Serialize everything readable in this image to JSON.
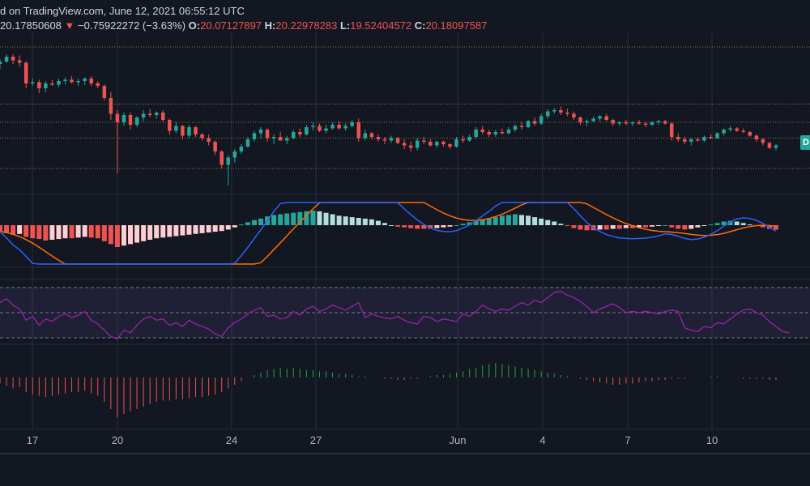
{
  "header": {
    "source_line": "d on TradingView.com, June 12, 2021 06:55:12 UTC",
    "price": "20.17850608",
    "change_arrow": "▼",
    "change": "−0.75922272 (−3.63%)",
    "o_label": "O:",
    "o_value": "20.07127897",
    "h_label": "H:",
    "h_value": "20.22978283",
    "l_label": "L:",
    "l_value": "19.52404572",
    "c_label": "C:",
    "c_value": "20.18097587"
  },
  "price_tag": "D",
  "colors": {
    "background": "#131722",
    "up": "#26a69a",
    "down": "#ef5350",
    "macd": "#2962ff",
    "signal": "#ff6d00",
    "rsi": "#9c27b0",
    "hist_up": "#26a69a",
    "hist_down": "#ef5350",
    "grid": "#2a2e39"
  },
  "chart_data": {
    "type": "candlestick",
    "x_ticks": [
      "17",
      "20",
      "24",
      "27",
      "Jun",
      "4",
      "7",
      "10"
    ],
    "price_hlines": [
      19.0,
      21.5,
      22.8,
      24.3,
      29.0
    ],
    "candles": [
      [
        27.6,
        28.0,
        27.2,
        27.8
      ],
      [
        27.8,
        28.4,
        27.7,
        28.2
      ],
      [
        28.2,
        28.4,
        27.6,
        27.9
      ],
      [
        27.9,
        28.3,
        27.4,
        27.7
      ],
      [
        27.7,
        27.8,
        25.6,
        26.0
      ],
      [
        26.0,
        26.4,
        25.8,
        26.1
      ],
      [
        26.1,
        26.3,
        25.2,
        25.6
      ],
      [
        25.6,
        26.2,
        25.3,
        26.0
      ],
      [
        26.0,
        26.3,
        25.8,
        25.9
      ],
      [
        25.9,
        26.4,
        25.7,
        26.2
      ],
      [
        26.2,
        26.5,
        25.9,
        26.3
      ],
      [
        26.3,
        26.6,
        26.0,
        26.1
      ],
      [
        26.1,
        26.4,
        25.8,
        26.2
      ],
      [
        26.2,
        26.5,
        25.9,
        26.4
      ],
      [
        26.4,
        26.6,
        25.8,
        26.0
      ],
      [
        26.0,
        26.2,
        25.6,
        25.8
      ],
      [
        25.8,
        25.9,
        24.6,
        24.8
      ],
      [
        24.8,
        25.3,
        23.0,
        23.5
      ],
      [
        23.5,
        23.8,
        18.6,
        22.8
      ],
      [
        22.8,
        23.6,
        22.5,
        23.4
      ],
      [
        23.4,
        23.6,
        22.2,
        22.6
      ],
      [
        22.6,
        23.3,
        22.4,
        23.2
      ],
      [
        23.2,
        23.8,
        22.9,
        23.5
      ],
      [
        23.5,
        23.9,
        23.2,
        23.4
      ],
      [
        23.4,
        23.7,
        23.1,
        23.6
      ],
      [
        23.6,
        23.8,
        22.8,
        23.0
      ],
      [
        23.0,
        23.1,
        21.8,
        22.1
      ],
      [
        22.1,
        22.8,
        21.9,
        22.5
      ],
      [
        22.5,
        22.6,
        21.4,
        21.7
      ],
      [
        21.7,
        22.6,
        21.5,
        22.4
      ],
      [
        22.4,
        22.5,
        21.6,
        21.8
      ],
      [
        21.8,
        21.9,
        21.3,
        21.5
      ],
      [
        21.5,
        21.8,
        20.9,
        21.2
      ],
      [
        21.2,
        21.3,
        20.1,
        20.4
      ],
      [
        20.4,
        20.5,
        19.0,
        19.3
      ],
      [
        19.3,
        20.1,
        17.6,
        19.9
      ],
      [
        19.9,
        20.6,
        19.5,
        20.4
      ],
      [
        20.4,
        21.0,
        20.2,
        20.8
      ],
      [
        20.8,
        21.6,
        20.7,
        21.4
      ],
      [
        21.4,
        22.1,
        21.2,
        21.9
      ],
      [
        21.9,
        22.4,
        21.5,
        22.2
      ],
      [
        22.2,
        22.3,
        21.2,
        21.5
      ],
      [
        21.5,
        21.8,
        21.0,
        21.6
      ],
      [
        21.6,
        22.0,
        21.3,
        21.3
      ],
      [
        21.3,
        21.7,
        21.0,
        21.5
      ],
      [
        21.5,
        22.2,
        21.4,
        22.0
      ],
      [
        22.0,
        22.3,
        21.6,
        21.8
      ],
      [
        21.8,
        22.6,
        21.7,
        22.4
      ],
      [
        22.4,
        22.8,
        22.1,
        22.5
      ],
      [
        22.5,
        22.7,
        22.0,
        22.1
      ],
      [
        22.1,
        22.6,
        21.9,
        22.3
      ],
      [
        22.3,
        22.8,
        22.2,
        22.6
      ],
      [
        22.6,
        22.9,
        22.2,
        22.3
      ],
      [
        22.3,
        22.7,
        22.1,
        22.5
      ],
      [
        22.5,
        23.0,
        22.4,
        22.8
      ],
      [
        22.8,
        23.1,
        21.2,
        21.5
      ],
      [
        21.5,
        22.2,
        21.3,
        21.9
      ],
      [
        21.9,
        22.0,
        21.4,
        21.6
      ],
      [
        21.6,
        21.8,
        21.2,
        21.4
      ],
      [
        21.4,
        21.6,
        21.0,
        21.3
      ],
      [
        21.3,
        21.7,
        21.1,
        21.5
      ],
      [
        21.5,
        21.6,
        21.0,
        21.1
      ],
      [
        21.1,
        21.4,
        20.6,
        20.9
      ],
      [
        20.9,
        21.2,
        20.4,
        20.7
      ],
      [
        20.7,
        21.5,
        20.5,
        21.3
      ],
      [
        21.3,
        21.6,
        21.0,
        21.2
      ],
      [
        21.2,
        21.4,
        20.8,
        20.9
      ],
      [
        20.9,
        21.3,
        20.7,
        21.2
      ],
      [
        21.2,
        21.3,
        20.8,
        21.0
      ],
      [
        21.0,
        21.1,
        20.6,
        20.8
      ],
      [
        20.8,
        21.6,
        20.7,
        21.4
      ],
      [
        21.4,
        21.7,
        21.1,
        21.3
      ],
      [
        21.3,
        21.8,
        21.2,
        21.6
      ],
      [
        21.6,
        22.4,
        21.5,
        22.2
      ],
      [
        22.2,
        22.5,
        21.8,
        22.0
      ],
      [
        22.0,
        22.2,
        21.6,
        21.8
      ],
      [
        21.8,
        22.2,
        21.6,
        22.0
      ],
      [
        22.0,
        22.3,
        21.8,
        21.9
      ],
      [
        21.9,
        22.4,
        21.8,
        22.2
      ],
      [
        22.2,
        22.6,
        22.0,
        22.5
      ],
      [
        22.5,
        22.8,
        22.2,
        22.4
      ],
      [
        22.4,
        23.0,
        22.3,
        22.9
      ],
      [
        22.9,
        23.2,
        22.5,
        22.7
      ],
      [
        22.7,
        23.5,
        22.6,
        23.3
      ],
      [
        23.3,
        23.9,
        23.1,
        23.7
      ],
      [
        23.7,
        24.0,
        23.5,
        23.8
      ],
      [
        23.8,
        24.1,
        23.4,
        23.6
      ],
      [
        23.6,
        23.9,
        23.3,
        23.5
      ],
      [
        23.5,
        23.7,
        23.0,
        23.2
      ],
      [
        23.2,
        23.3,
        22.6,
        22.8
      ],
      [
        22.8,
        23.0,
        22.5,
        22.9
      ],
      [
        22.9,
        23.3,
        22.8,
        23.1
      ],
      [
        23.1,
        23.4,
        22.9,
        23.3
      ],
      [
        23.3,
        23.5,
        22.9,
        23.0
      ],
      [
        23.0,
        23.1,
        22.5,
        22.7
      ],
      [
        22.7,
        22.9,
        22.5,
        22.8
      ],
      [
        22.8,
        23.0,
        22.6,
        22.7
      ],
      [
        22.7,
        22.9,
        22.5,
        22.8
      ],
      [
        22.8,
        23.0,
        22.6,
        22.7
      ],
      [
        22.7,
        22.8,
        22.4,
        22.6
      ],
      [
        22.6,
        22.9,
        22.5,
        22.8
      ],
      [
        22.8,
        23.0,
        22.6,
        22.9
      ],
      [
        22.9,
        23.0,
        22.6,
        22.7
      ],
      [
        22.7,
        22.8,
        21.3,
        21.6
      ],
      [
        21.6,
        21.9,
        21.2,
        21.4
      ],
      [
        21.4,
        21.6,
        21.0,
        21.2
      ],
      [
        21.2,
        21.5,
        20.9,
        21.4
      ],
      [
        21.4,
        21.6,
        21.2,
        21.3
      ],
      [
        21.3,
        21.7,
        21.2,
        21.6
      ],
      [
        21.6,
        21.8,
        21.4,
        21.5
      ],
      [
        21.5,
        22.0,
        21.4,
        21.9
      ],
      [
        21.9,
        22.3,
        21.7,
        22.2
      ],
      [
        22.2,
        22.5,
        22.0,
        22.3
      ],
      [
        22.3,
        22.4,
        22.0,
        22.1
      ],
      [
        22.1,
        22.3,
        21.9,
        22.0
      ],
      [
        22.0,
        22.1,
        21.6,
        21.7
      ],
      [
        21.7,
        21.8,
        21.2,
        21.4
      ],
      [
        21.4,
        21.5,
        20.9,
        21.1
      ],
      [
        21.1,
        21.2,
        20.6,
        20.7
      ],
      [
        20.7,
        21.0,
        20.5,
        20.9
      ]
    ],
    "macd_hist": [
      -0.9,
      -1.1,
      -1.3,
      -1.2,
      -1.6,
      -1.8,
      -1.9,
      -2.1,
      -2.0,
      -1.9,
      -1.8,
      -1.8,
      -1.7,
      -1.6,
      -1.7,
      -1.8,
      -2.2,
      -2.6,
      -3.0,
      -2.8,
      -2.6,
      -2.4,
      -2.2,
      -2.0,
      -1.8,
      -1.7,
      -1.6,
      -1.5,
      -1.4,
      -1.3,
      -1.2,
      -1.1,
      -1.0,
      -0.9,
      -0.8,
      -0.6,
      -0.3,
      0.1,
      0.4,
      0.7,
      0.9,
      1.2,
      1.4,
      1.5,
      1.6,
      1.7,
      1.8,
      1.9,
      2.0,
      1.9,
      1.7,
      1.5,
      1.3,
      1.2,
      1.1,
      1.0,
      0.9,
      0.8,
      0.6,
      0.3,
      0.0,
      -0.2,
      -0.3,
      -0.4,
      -0.5,
      -0.5,
      -0.5,
      -0.4,
      -0.3,
      -0.2,
      0.0,
      0.2,
      0.4,
      0.6,
      0.8,
      0.9,
      1.1,
      1.3,
      1.4,
      1.5,
      1.4,
      1.3,
      1.1,
      0.9,
      0.7,
      0.5,
      0.2,
      -0.1,
      -0.4,
      -0.6,
      -0.7,
      -0.7,
      -0.6,
      -0.6,
      -0.5,
      -0.5,
      -0.4,
      -0.4,
      -0.3,
      -0.3,
      -0.2,
      -0.1,
      0.0,
      -0.3,
      -0.5,
      -0.6,
      -0.5,
      -0.3,
      -0.1,
      0.1,
      0.3,
      0.5,
      0.6,
      0.5,
      0.3,
      0.1,
      -0.1,
      -0.3,
      -0.5,
      -0.6
    ],
    "rsi": [
      58,
      61,
      56,
      53,
      44,
      47,
      40,
      45,
      43,
      47,
      49,
      46,
      48,
      51,
      44,
      41,
      36,
      31,
      29,
      36,
      34,
      40,
      45,
      47,
      44,
      45,
      40,
      42,
      39,
      44,
      41,
      39,
      37,
      33,
      31,
      38,
      42,
      45,
      49,
      52,
      54,
      47,
      48,
      45,
      46,
      51,
      48,
      53,
      55,
      51,
      53,
      56,
      54,
      52,
      55,
      58,
      46,
      49,
      47,
      46,
      45,
      47,
      44,
      42,
      41,
      47,
      46,
      43,
      45,
      44,
      43,
      49,
      47,
      51,
      56,
      53,
      51,
      53,
      52,
      55,
      58,
      56,
      60,
      58,
      62,
      66,
      67,
      64,
      62,
      59,
      55,
      50,
      53,
      55,
      57,
      54,
      50,
      51,
      50,
      51,
      50,
      49,
      51,
      52,
      51,
      38,
      36,
      35,
      39,
      38,
      42,
      41,
      45,
      49,
      52,
      53,
      50,
      48,
      43,
      39,
      35,
      34
    ],
    "osc": [
      -0.5,
      -0.7,
      -0.9,
      -0.8,
      -1.2,
      -1.4,
      -1.5,
      -1.6,
      -1.5,
      -1.4,
      -1.3,
      -1.2,
      -1.2,
      -1.1,
      -1.3,
      -1.5,
      -2.0,
      -2.6,
      -3.3,
      -3.0,
      -2.8,
      -2.6,
      -2.4,
      -2.2,
      -2.0,
      -1.9,
      -1.9,
      -1.8,
      -1.8,
      -1.7,
      -1.6,
      -1.6,
      -1.5,
      -1.4,
      -1.2,
      -0.9,
      -0.6,
      -0.3,
      0.0,
      0.2,
      0.4,
      0.6,
      0.7,
      0.8,
      0.7,
      0.8,
      0.7,
      0.6,
      0.6,
      0.5,
      0.5,
      0.4,
      0.3,
      0.3,
      0.2,
      0.1,
      0.1,
      0.0,
      0.0,
      -0.1,
      -0.1,
      -0.2,
      -0.2,
      -0.1,
      -0.1,
      0.0,
      0.1,
      0.2,
      0.2,
      0.3,
      0.4,
      0.5,
      0.7,
      0.8,
      1.0,
      1.1,
      1.2,
      1.1,
      1.0,
      0.9,
      0.8,
      0.7,
      0.6,
      0.5,
      0.4,
      0.3,
      0.2,
      0.1,
      0.0,
      -0.1,
      -0.2,
      -0.3,
      -0.4,
      -0.5,
      -0.6,
      -0.6,
      -0.5,
      -0.5,
      -0.4,
      -0.3,
      -0.3,
      -0.2,
      -0.2,
      -0.1,
      -0.1,
      -0.1,
      0.0,
      0.0,
      0.0,
      0.1,
      0.1,
      0.0,
      0.0,
      0.0,
      -0.1,
      -0.1,
      -0.1,
      -0.1,
      -0.2,
      -0.2
    ]
  }
}
